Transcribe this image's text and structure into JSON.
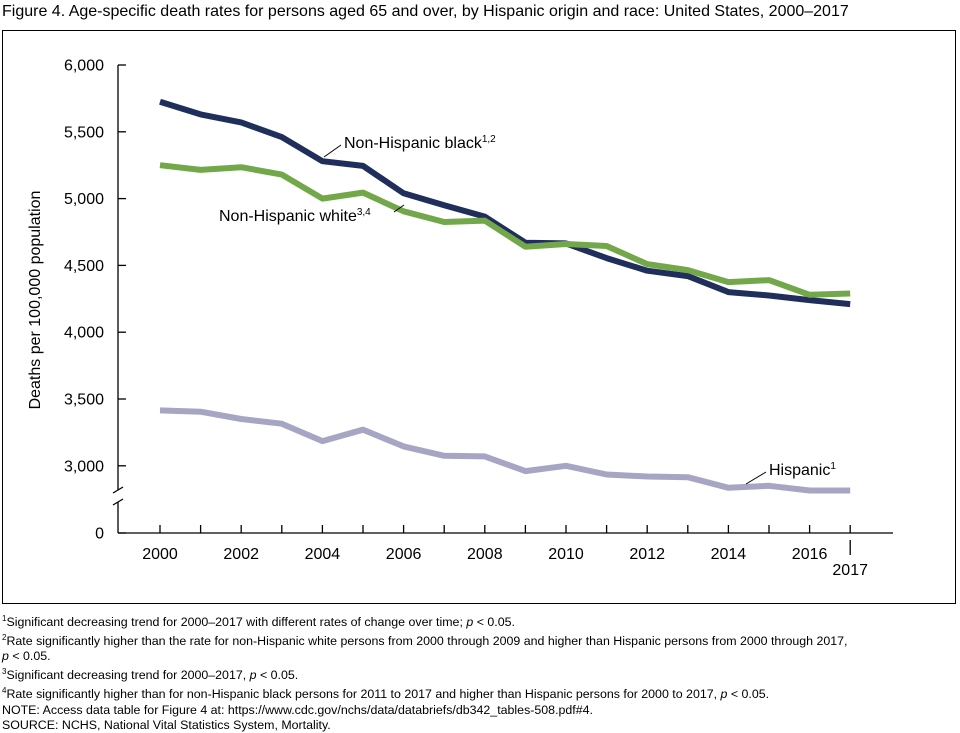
{
  "title": "Figure 4. Age-specific death rates for persons aged 65 and over, by Hispanic origin and race: United States, 2000–2017",
  "chart_data": {
    "type": "line",
    "ylabel": "Deaths per 100,000 population",
    "xlabel": "",
    "x": [
      2000,
      2001,
      2002,
      2003,
      2004,
      2005,
      2006,
      2007,
      2008,
      2009,
      2010,
      2011,
      2012,
      2013,
      2014,
      2015,
      2016,
      2017
    ],
    "xticks": [
      "2000",
      "2002",
      "2004",
      "2006",
      "2008",
      "2010",
      "2012",
      "2014",
      "2016",
      "2017"
    ],
    "yticks": [
      "6,000",
      "5,500",
      "5,000",
      "4,500",
      "4,000",
      "3,500",
      "3,000",
      "0"
    ],
    "ylim": [
      0,
      6000
    ],
    "y_axis_break": true,
    "grid": false,
    "legend": "inline labels",
    "series": [
      {
        "name": "Non-Hispanic black",
        "label_sup": "1,2",
        "color": "#1f2e5a",
        "values": [
          5725,
          5630,
          5570,
          5460,
          5280,
          5245,
          5040,
          4950,
          4865,
          4670,
          4665,
          4555,
          4460,
          4420,
          4300,
          4275,
          4240,
          4210
        ]
      },
      {
        "name": "Non-Hispanic white",
        "label_sup": "3,4",
        "color": "#72a84a",
        "values": [
          5250,
          5215,
          5235,
          5180,
          5000,
          5045,
          4905,
          4825,
          4835,
          4640,
          4660,
          4645,
          4510,
          4465,
          4375,
          4390,
          4280,
          4290
        ]
      },
      {
        "name": "Hispanic",
        "label_sup": "1",
        "color": "#a7a5c4",
        "values": [
          3415,
          3405,
          3350,
          3315,
          3185,
          3270,
          3145,
          3075,
          3070,
          2960,
          3000,
          2935,
          2920,
          2915,
          2835,
          2850,
          2815,
          2815
        ]
      }
    ]
  },
  "footnotes": [
    {
      "sup": "1",
      "parts": [
        "Significant decreasing trend for 2000–2017 with different rates of change over time; ",
        "p",
        " < 0.05."
      ]
    },
    {
      "sup": "2",
      "parts": [
        "Rate significantly higher than the rate for non-Hispanic white persons from 2000 through 2009 and higher than Hispanic persons from 2000 through 2017,"
      ]
    },
    {
      "sup": "",
      "parts": [
        "",
        "p",
        " < 0.05."
      ]
    },
    {
      "sup": "3",
      "parts": [
        "Significant decreasing trend for 2000–2017, ",
        "p",
        " < 0.05."
      ]
    },
    {
      "sup": "4",
      "parts": [
        "Rate significantly higher than for non-Hispanic black persons for 2011 to 2017 and higher than Hispanic persons for 2000 to 2017, ",
        "p",
        " < 0.05."
      ]
    },
    {
      "sup": "",
      "parts": [
        "NOTE: Access data table for Figure 4 at: https://www.cdc.gov/nchs/data/databriefs/db342_tables-508.pdf#4."
      ]
    },
    {
      "sup": "",
      "parts": [
        "SOURCE: NCHS, National Vital Statistics System, Mortality."
      ]
    }
  ]
}
